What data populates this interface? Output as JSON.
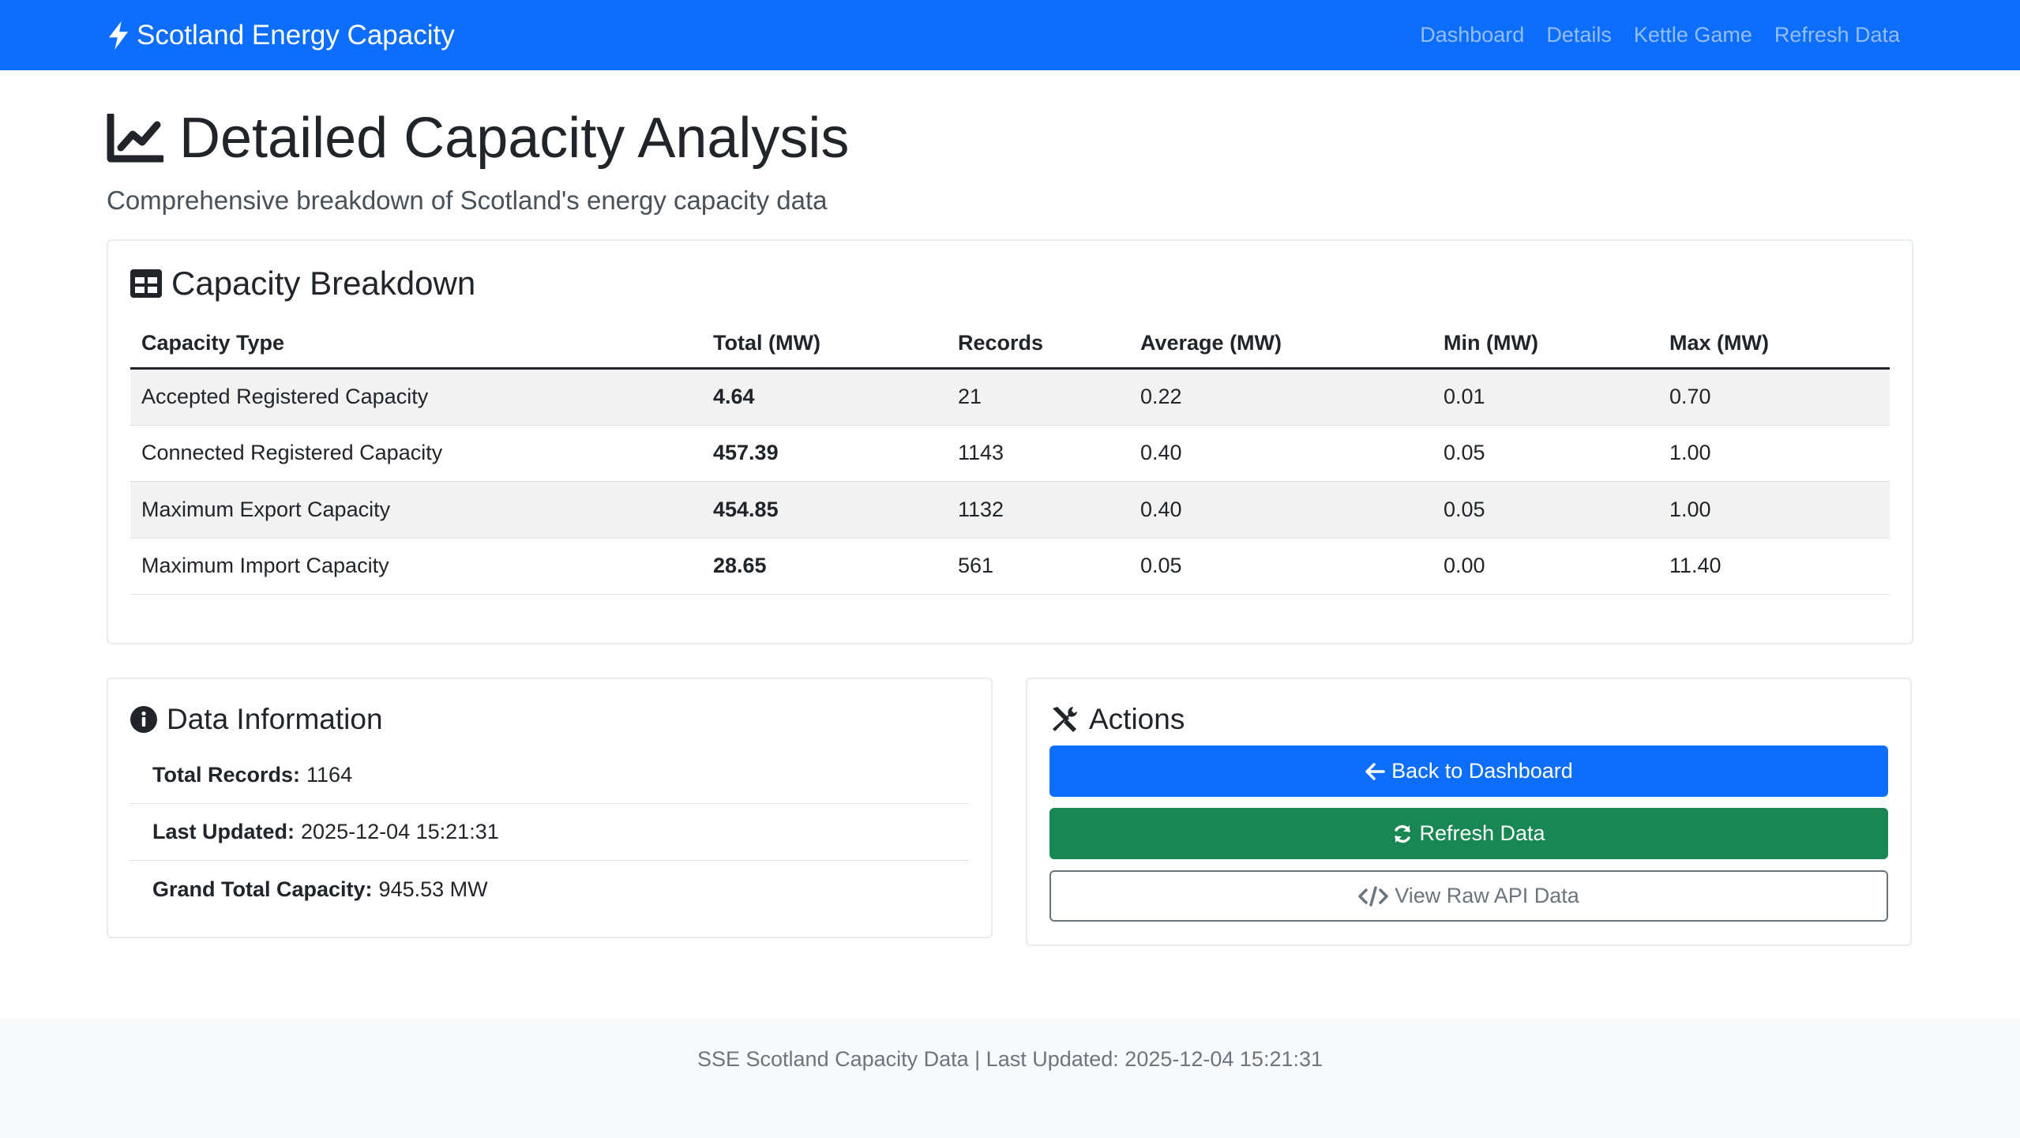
{
  "navbar": {
    "brand": "Scotland Energy Capacity",
    "links": [
      "Dashboard",
      "Details",
      "Kettle Game",
      "Refresh Data"
    ]
  },
  "page": {
    "title": "Detailed Capacity Analysis",
    "subtitle": "Comprehensive breakdown of Scotland's energy capacity data"
  },
  "breakdown": {
    "title": "Capacity Breakdown",
    "headers": [
      "Capacity Type",
      "Total (MW)",
      "Records",
      "Average (MW)",
      "Min (MW)",
      "Max (MW)"
    ],
    "rows": [
      [
        "Accepted Registered Capacity",
        "4.64",
        "21",
        "0.22",
        "0.01",
        "0.70"
      ],
      [
        "Connected Registered Capacity",
        "457.39",
        "1143",
        "0.40",
        "0.05",
        "1.00"
      ],
      [
        "Maximum Export Capacity",
        "454.85",
        "1132",
        "0.40",
        "0.05",
        "1.00"
      ],
      [
        "Maximum Import Capacity",
        "28.65",
        "561",
        "0.05",
        "0.00",
        "11.40"
      ]
    ]
  },
  "info": {
    "title": "Data Information",
    "items": [
      {
        "label": "Total Records:",
        "value": "1164"
      },
      {
        "label": "Last Updated:",
        "value": "2025-12-04 15:21:31"
      },
      {
        "label": "Grand Total Capacity:",
        "value": "945.53 MW"
      }
    ]
  },
  "actions": {
    "title": "Actions",
    "back_label": "Back to Dashboard",
    "refresh_label": "Refresh Data",
    "raw_label": "View Raw API Data"
  },
  "footer": {
    "text": "SSE Scotland Capacity Data | Last Updated: 2025-12-04 15:21:31"
  },
  "colors": {
    "primary": "#0d6efd",
    "success": "#198754",
    "secondary": "#6c757d"
  }
}
